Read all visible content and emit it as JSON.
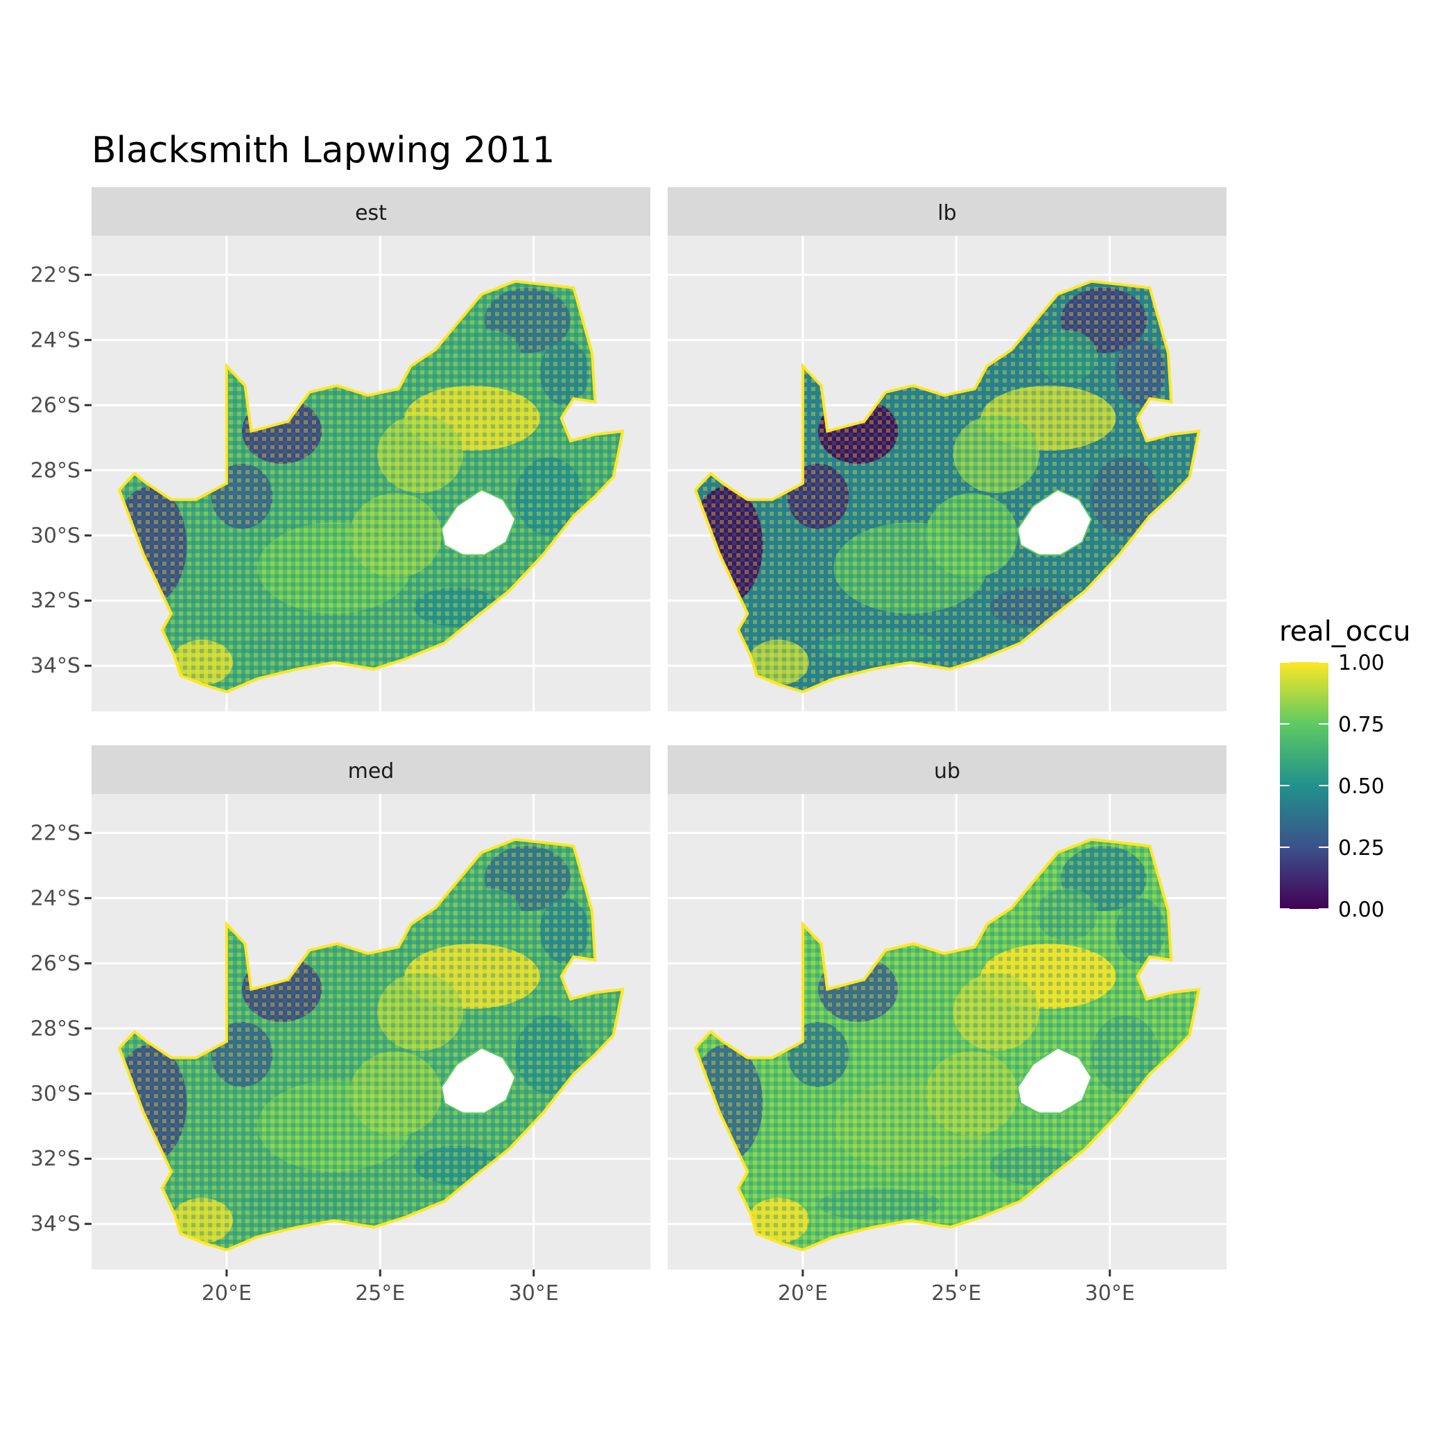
{
  "title": "Blacksmith Lapwing 2011",
  "panels": [
    {
      "label": "est",
      "variant": 0
    },
    {
      "label": "lb",
      "variant": 1
    },
    {
      "label": "med",
      "variant": 2
    },
    {
      "label": "ub",
      "variant": 3
    }
  ],
  "axes": {
    "lon_ticks": [
      20,
      25,
      30
    ],
    "lon_tick_labels": [
      "20°E",
      "25°E",
      "30°E"
    ],
    "lat_ticks": [
      -22,
      -24,
      -26,
      -28,
      -30,
      -32,
      -34
    ],
    "lat_tick_labels": [
      "22°S",
      "24°S",
      "26°S",
      "28°S",
      "30°S",
      "32°S",
      "34°S"
    ],
    "lon_range": [
      15.6,
      33.8
    ],
    "lat_range": [
      -35.4,
      -20.8
    ]
  },
  "legend": {
    "title": "real_occu",
    "tick_values": [
      1.0,
      0.75,
      0.5,
      0.25,
      0.0
    ],
    "tick_labels": [
      "1.00",
      "0.75",
      "0.50",
      "0.25",
      "0.00"
    ],
    "range": [
      0,
      1
    ],
    "colormap": "viridis"
  },
  "colors": {
    "panel_background": "#ebebeb",
    "strip_background": "#d9d9d9",
    "gridline": "#ffffff",
    "viridis_stops": [
      "#440154",
      "#3b528b",
      "#21918c",
      "#5ec962",
      "#fde725"
    ]
  }
}
